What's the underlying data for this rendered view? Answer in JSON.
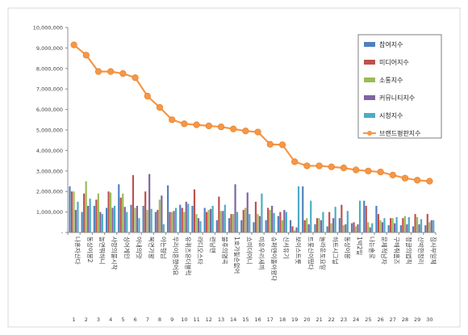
{
  "chart_data": {
    "type": "bar",
    "title": "",
    "xlabel": "",
    "ylabel": "",
    "ylim": [
      0,
      10000000
    ],
    "yticks": [
      "-",
      "1,000,000",
      "2,000,000",
      "3,000,000",
      "4,000,000",
      "5,000,000",
      "6,000,000",
      "7,000,000",
      "8,000,000",
      "9,000,000",
      "10,000,000"
    ],
    "grid": false,
    "legend_position": "top-right",
    "categories": [
      "1",
      "2",
      "3",
      "4",
      "5",
      "6",
      "7",
      "8",
      "9",
      "10",
      "11",
      "12",
      "13",
      "14",
      "15",
      "16",
      "17",
      "18",
      "19",
      "20",
      "21",
      "22",
      "23",
      "24",
      "25",
      "26",
      "27",
      "28",
      "29",
      "30"
    ],
    "category_names": [
      "나혼자산다",
      "동상이몽2",
      "놀면뭐하니",
      "사랑의불시착",
      "싱어게인",
      "아내의맛",
      "복면가왕",
      "아는형님",
      "우리이혼했어요",
      "유퀴즈온더블럭",
      "라디오스타",
      "런닝맨",
      "불후의명곡",
      "1호가될순없어",
      "쇼미더머니",
      "미운우리새끼",
      "슈퍼맨이돌아왔다",
      "신서유기",
      "보이스트롯",
      "트롯신이떴다",
      "놀라운토요일",
      "하트시그널",
      "동상이몽",
      "1박2일",
      "나는솔로",
      "문제적남자",
      "구해줘홈즈",
      "정글의법칙",
      "신박한정리",
      "집사부일체"
    ],
    "series": [
      {
        "name": "참여지수",
        "color": "#4f81bd",
        "values": [
          2250000,
          1000000,
          1300000,
          1200000,
          2350000,
          1350000,
          1300000,
          1000000,
          2300000,
          1350000,
          1300000,
          1200000,
          600000,
          700000,
          600000,
          500000,
          600000,
          800000,
          600000,
          2250000,
          400000,
          300000,
          700000,
          450000,
          1550000,
          1300000,
          350000,
          350000,
          300000,
          350000
        ]
      },
      {
        "name": "미디어지수",
        "color": "#c0504d",
        "values": [
          2000000,
          1900000,
          1600000,
          2000000,
          1700000,
          2800000,
          2000000,
          1100000,
          1000000,
          1200000,
          2100000,
          1000000,
          1750000,
          900000,
          1100000,
          1500000,
          1200000,
          1000000,
          300000,
          600000,
          700000,
          1000000,
          1350000,
          500000,
          1300000,
          900000,
          700000,
          700000,
          900000,
          900000
        ]
      },
      {
        "name": "소통지수",
        "color": "#9bbb59",
        "values": [
          2000000,
          2500000,
          1900000,
          1950000,
          1900000,
          1200000,
          1100000,
          1600000,
          1000000,
          1000000,
          900000,
          1100000,
          1050000,
          900000,
          1200000,
          900000,
          1100000,
          600000,
          100000,
          700000,
          700000,
          450000,
          350000,
          300000,
          500000,
          600000,
          700000,
          800000,
          750000,
          500000
        ]
      },
      {
        "name": "커뮤니티지수",
        "color": "#8064a2",
        "values": [
          1100000,
          1300000,
          1000000,
          1200000,
          1250000,
          1300000,
          2850000,
          1800000,
          1050000,
          1500000,
          700000,
          1150000,
          1050000,
          2350000,
          1950000,
          800000,
          1300000,
          1100000,
          250000,
          400000,
          600000,
          700000,
          400000,
          400000,
          250000,
          500000,
          450000,
          400000,
          400000,
          600000
        ]
      },
      {
        "name": "시청지수",
        "color": "#4bacc6",
        "values": [
          1500000,
          1650000,
          900000,
          1300000,
          1000000,
          700000,
          1150000,
          400000,
          1200000,
          1400000,
          550000,
          1300000,
          1350000,
          1000000,
          900000,
          1900000,
          950000,
          1000000,
          2250000,
          1550000,
          1000000,
          1250000,
          1050000,
          1550000,
          450000,
          700000,
          750000,
          750000,
          650000,
          600000
        ]
      },
      {
        "name": "브랜드평판지수",
        "color": "#f79646",
        "type": "line",
        "values": [
          9150000,
          8650000,
          7850000,
          7850000,
          7750000,
          7550000,
          6650000,
          6100000,
          5500000,
          5300000,
          5250000,
          5200000,
          5150000,
          5050000,
          4950000,
          4900000,
          4300000,
          4280000,
          3450000,
          3250000,
          3250000,
          3200000,
          3150000,
          3050000,
          3000000,
          2950000,
          2800000,
          2650000,
          2550000,
          2500000
        ]
      }
    ]
  }
}
